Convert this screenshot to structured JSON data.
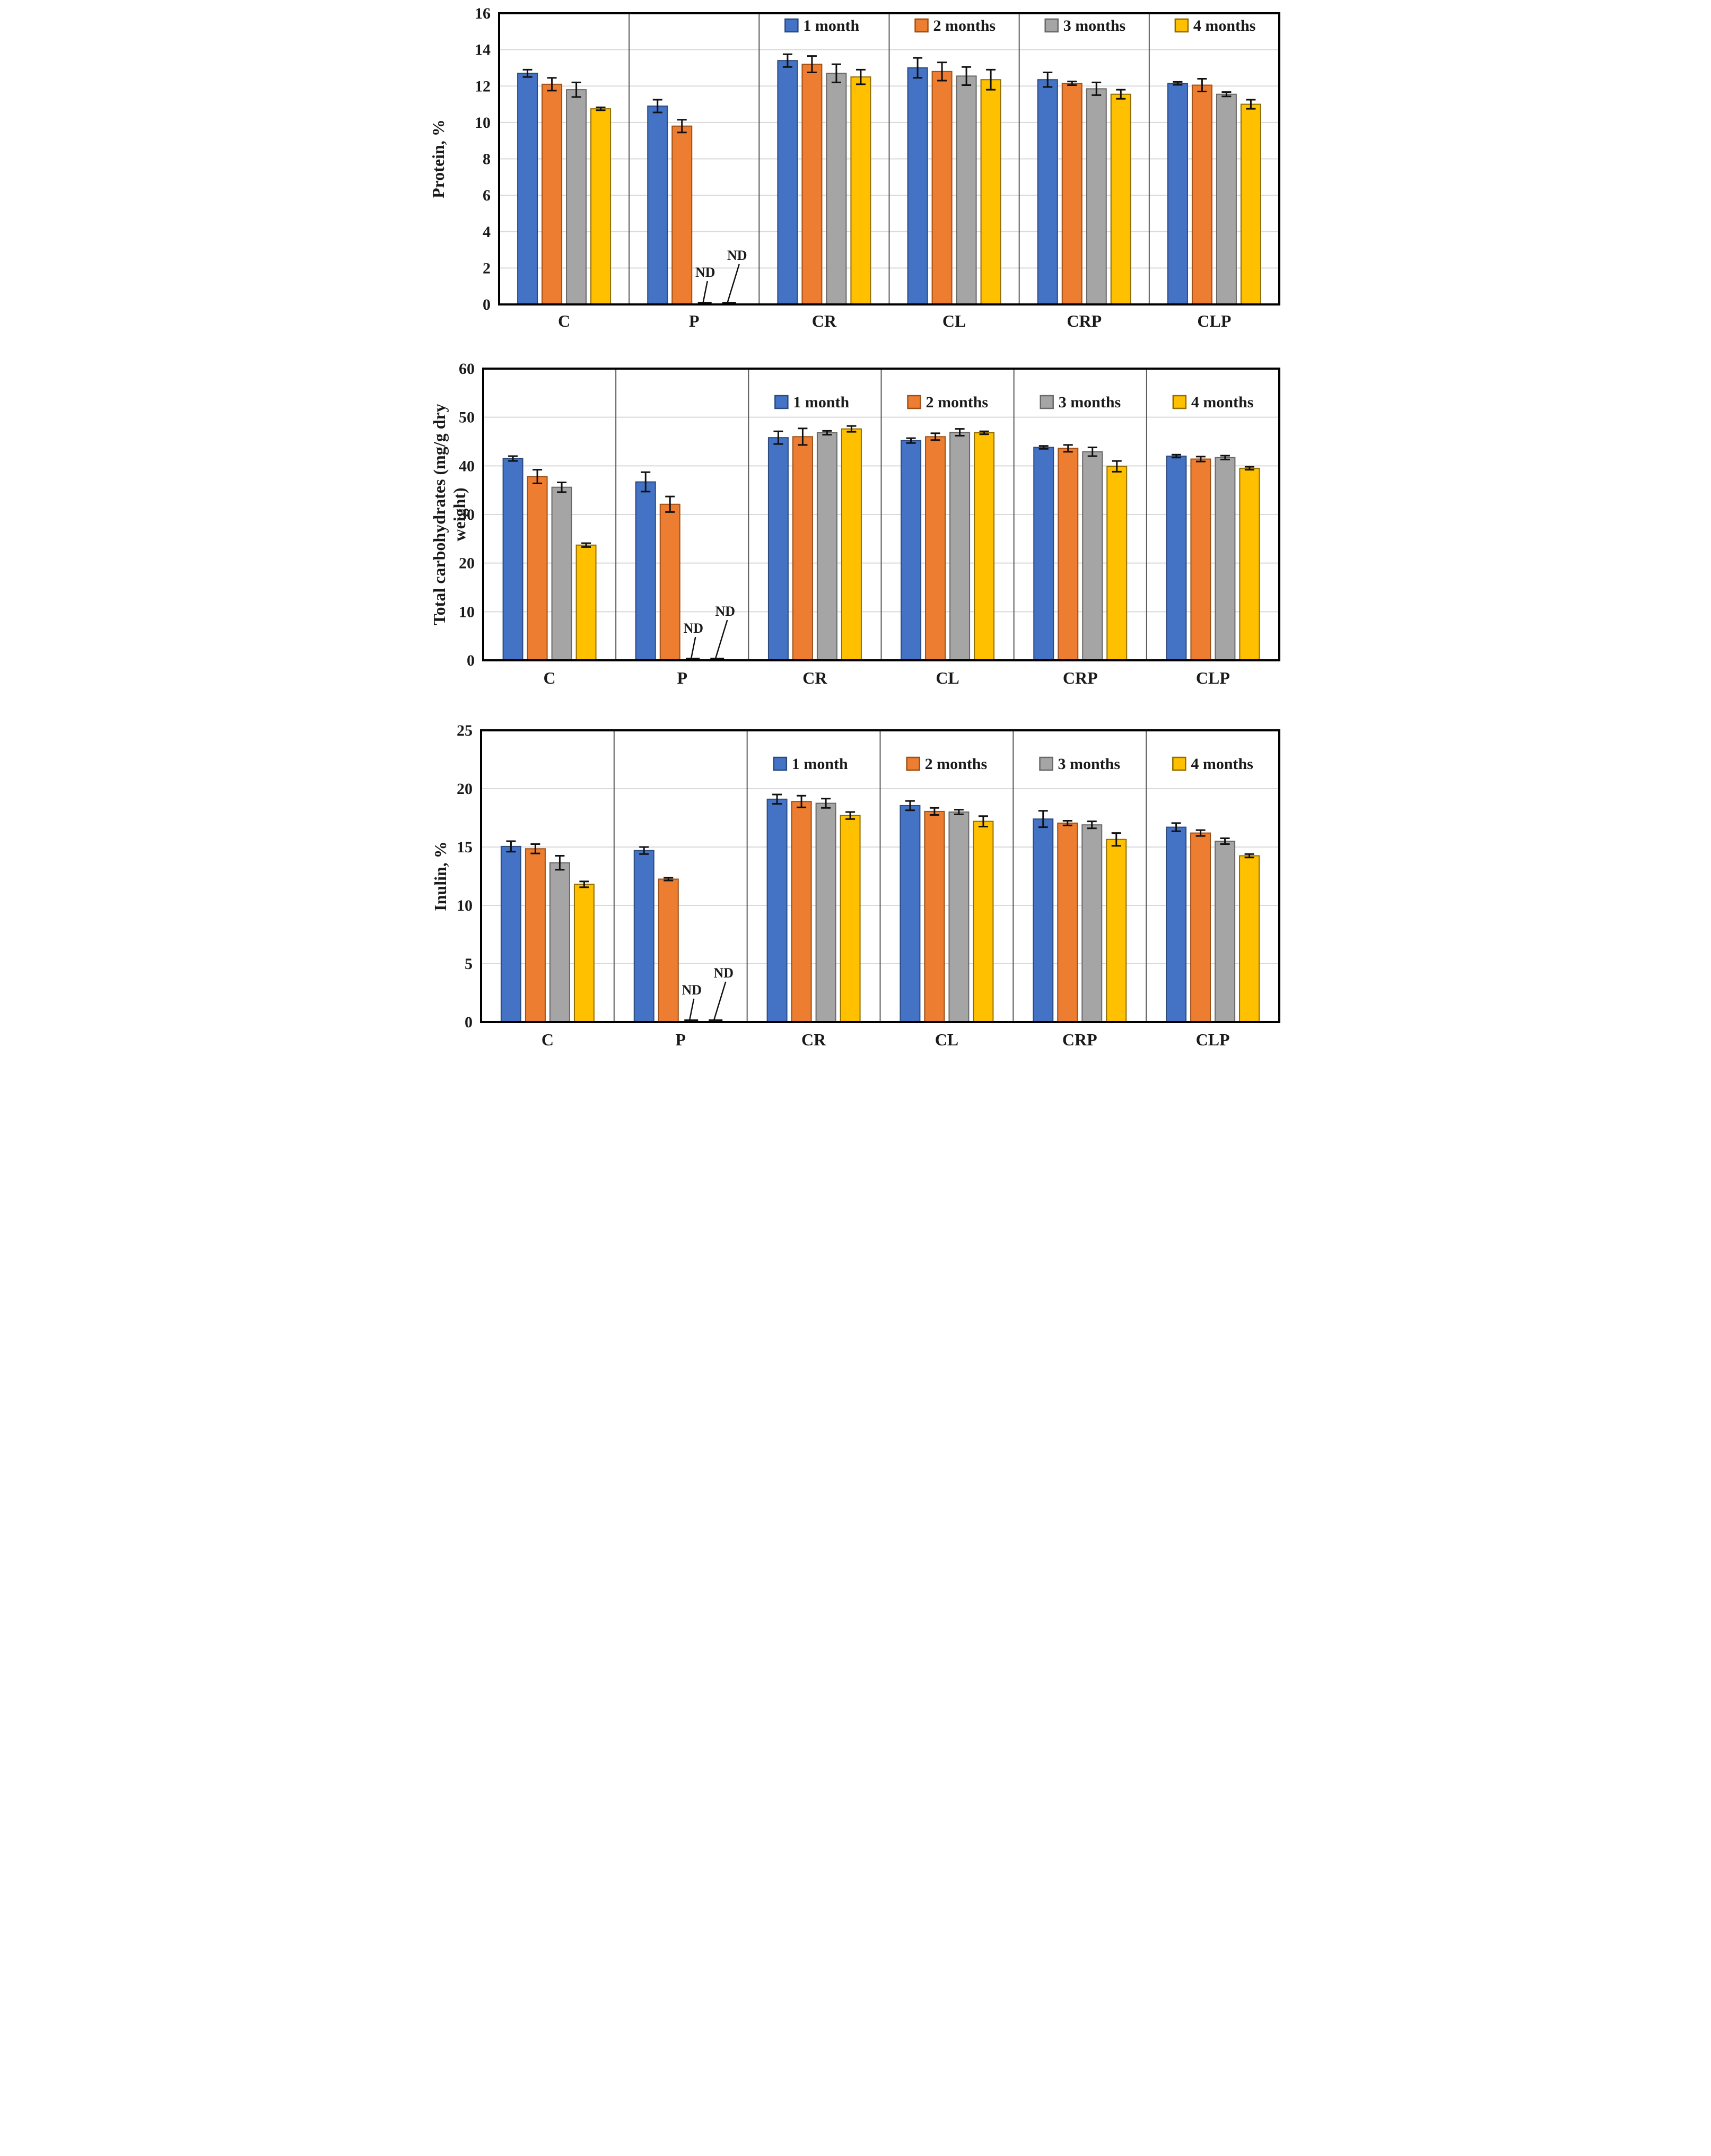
{
  "figure": {
    "background": "#ffffff",
    "nd_label": "ND",
    "series_colors": {
      "month1_fill": "#4472C4",
      "month1_border": "#2A4A7F",
      "month2_fill": "#ED7D31",
      "month2_border": "#9E4E15",
      "month3_fill": "#A5A5A5",
      "month3_border": "#686868",
      "month4_fill": "#FFC000",
      "month4_border": "#8F6C00"
    },
    "grid_color": "#D9D9D9",
    "divider_color": "#595959",
    "frame_color": "#000000"
  },
  "chart_data": [
    {
      "type": "bar",
      "title": "",
      "ylabel": "Protein, %",
      "ylabel_lines": [
        "Protein, %"
      ],
      "xlabel": "",
      "ylim": [
        0,
        16
      ],
      "ytick_step": 2,
      "ytick_labels": [
        "0",
        "2",
        "4",
        "6",
        "8",
        "10",
        "12",
        "14",
        "16"
      ],
      "grid": true,
      "legend_position": "top-inside",
      "categories": [
        "C",
        "P",
        "CR",
        "CL",
        "CRP",
        "CLP"
      ],
      "series": [
        {
          "name": "1 month",
          "values": [
            12.7,
            10.9,
            13.4,
            13.0,
            12.35,
            12.15
          ],
          "errors": [
            0.2,
            0.35,
            0.35,
            0.55,
            0.4,
            0.08
          ]
        },
        {
          "name": "2 months",
          "values": [
            12.1,
            9.8,
            13.2,
            12.8,
            12.15,
            12.05
          ],
          "errors": [
            0.35,
            0.35,
            0.45,
            0.5,
            0.1,
            0.35
          ]
        },
        {
          "name": "3 months",
          "values": [
            11.8,
            null,
            12.7,
            12.55,
            11.85,
            11.55
          ],
          "errors": [
            0.4,
            null,
            0.5,
            0.5,
            0.35,
            0.12
          ]
        },
        {
          "name": "4 months",
          "values": [
            10.75,
            null,
            12.5,
            12.35,
            11.55,
            11.0
          ],
          "errors": [
            0.08,
            null,
            0.4,
            0.55,
            0.25,
            0.25
          ]
        }
      ],
      "nd_annotations": [
        {
          "category": "P",
          "series_index": 2,
          "label": "ND"
        },
        {
          "category": "P",
          "series_index": 3,
          "label": "ND"
        }
      ]
    },
    {
      "type": "bar",
      "title": "",
      "ylabel": "Total carbohydrates (mg/g dry weight)",
      "ylabel_lines": [
        "Total carbohydrates (mg/g dry",
        "weight)"
      ],
      "xlabel": "",
      "ylim": [
        0,
        60
      ],
      "ytick_step": 10,
      "ytick_labels": [
        "0",
        "10",
        "20",
        "30",
        "40",
        "50",
        "60"
      ],
      "grid": true,
      "legend_position": "top-inside",
      "categories": [
        "C",
        "P",
        "CR",
        "CL",
        "CRP",
        "CLP"
      ],
      "series": [
        {
          "name": "1 month",
          "values": [
            41.5,
            36.7,
            45.8,
            45.2,
            43.8,
            42.0
          ],
          "errors": [
            0.5,
            2.0,
            1.3,
            0.5,
            0.3,
            0.3
          ]
        },
        {
          "name": "2 months",
          "values": [
            37.8,
            32.1,
            46.0,
            46.0,
            43.6,
            41.4
          ],
          "errors": [
            1.4,
            1.6,
            1.7,
            0.7,
            0.7,
            0.5
          ]
        },
        {
          "name": "3 months",
          "values": [
            35.6,
            null,
            46.8,
            46.9,
            42.9,
            41.7
          ],
          "errors": [
            1.0,
            null,
            0.4,
            0.7,
            0.9,
            0.4
          ]
        },
        {
          "name": "4 months",
          "values": [
            23.7,
            null,
            47.6,
            46.8,
            39.9,
            39.5
          ],
          "errors": [
            0.4,
            null,
            0.6,
            0.3,
            1.1,
            0.3
          ]
        }
      ],
      "nd_annotations": [
        {
          "category": "P",
          "series_index": 2,
          "label": "ND"
        },
        {
          "category": "P",
          "series_index": 3,
          "label": "ND"
        }
      ]
    },
    {
      "type": "bar",
      "title": "",
      "ylabel": "Inulin, %",
      "ylabel_lines": [
        "Inulin, %"
      ],
      "xlabel": "",
      "ylim": [
        0,
        25
      ],
      "ytick_step": 5,
      "ytick_labels": [
        "0",
        "5",
        "10",
        "15",
        "20",
        "25"
      ],
      "grid": true,
      "legend_position": "top-inside",
      "categories": [
        "C",
        "P",
        "CR",
        "CL",
        "CRP",
        "CLP"
      ],
      "series": [
        {
          "name": "1 month",
          "values": [
            15.05,
            14.7,
            19.1,
            18.55,
            17.4,
            16.7
          ],
          "errors": [
            0.45,
            0.3,
            0.4,
            0.4,
            0.7,
            0.35
          ]
        },
        {
          "name": "2 months",
          "values": [
            14.85,
            12.25,
            18.9,
            18.05,
            17.05,
            16.2
          ],
          "errors": [
            0.4,
            0.12,
            0.5,
            0.3,
            0.2,
            0.25
          ]
        },
        {
          "name": "3 months",
          "values": [
            13.65,
            null,
            18.75,
            18.0,
            16.9,
            15.5
          ],
          "errors": [
            0.6,
            null,
            0.4,
            0.2,
            0.3,
            0.25
          ]
        },
        {
          "name": "4 months",
          "values": [
            11.8,
            null,
            17.7,
            17.2,
            15.65,
            14.25
          ],
          "errors": [
            0.25,
            null,
            0.3,
            0.45,
            0.55,
            0.15
          ]
        }
      ],
      "nd_annotations": [
        {
          "category": "P",
          "series_index": 2,
          "label": "ND"
        },
        {
          "category": "P",
          "series_index": 3,
          "label": "ND"
        }
      ]
    }
  ]
}
